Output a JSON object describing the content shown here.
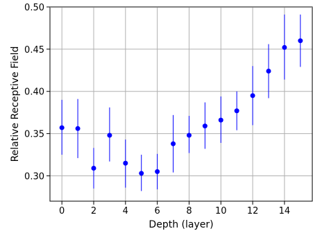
{
  "chart_data": {
    "type": "scatter",
    "title": "",
    "xlabel": "Depth (layer)",
    "ylabel": "Relative Receptive Field",
    "xlim": [
      -0.75,
      15.75
    ],
    "ylim": [
      0.27,
      0.5
    ],
    "xticks": [
      0,
      2,
      4,
      6,
      8,
      10,
      12,
      14
    ],
    "xtick_labels": [
      "0",
      "2",
      "4",
      "6",
      "8",
      "10",
      "12",
      "14"
    ],
    "yticks": [
      0.3,
      0.35,
      0.4,
      0.45,
      0.5
    ],
    "ytick_labels": [
      "0.30",
      "0.35",
      "0.40",
      "0.45",
      "0.50"
    ],
    "grid": true,
    "colors": {
      "marker": "#0000ff",
      "errorbar": "#0000ff",
      "grid": "#b0b0b0",
      "axes": "#000000"
    },
    "series": [
      {
        "marker": "circle",
        "x": [
          0,
          1,
          2,
          3,
          4,
          5,
          6,
          7,
          8,
          9,
          10,
          11,
          12,
          13,
          14,
          15
        ],
        "y": [
          0.357,
          0.356,
          0.309,
          0.348,
          0.315,
          0.303,
          0.305,
          0.338,
          0.348,
          0.359,
          0.366,
          0.377,
          0.395,
          0.424,
          0.452,
          0.46
        ],
        "y_low": [
          0.325,
          0.321,
          0.285,
          0.317,
          0.286,
          0.282,
          0.284,
          0.304,
          0.327,
          0.332,
          0.339,
          0.354,
          0.36,
          0.392,
          0.414,
          0.429
        ],
        "y_high": [
          0.39,
          0.391,
          0.333,
          0.381,
          0.343,
          0.325,
          0.326,
          0.372,
          0.371,
          0.387,
          0.394,
          0.4,
          0.43,
          0.456,
          0.491,
          0.491
        ]
      }
    ]
  }
}
